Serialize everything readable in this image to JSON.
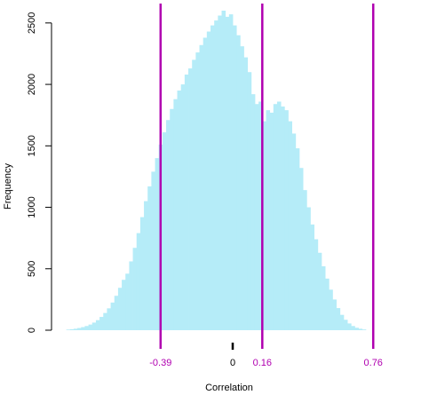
{
  "chart_data": {
    "type": "bar",
    "title": "",
    "xlabel": "Correlation",
    "ylabel": "Frequency",
    "ylim": [
      0,
      2600
    ],
    "y_ticks": [
      "0",
      "500",
      "1000",
      "1500",
      "2000",
      "2500"
    ],
    "x_tick_labels": [
      {
        "value": -0.39,
        "label": "-0.39",
        "color": "#b000b0"
      },
      {
        "value": 0,
        "label": "0",
        "color": "#000000"
      },
      {
        "value": 0.16,
        "label": "0.16",
        "color": "#b000b0"
      },
      {
        "value": 0.76,
        "label": "0.76",
        "color": "#b000b0"
      }
    ],
    "zero_marker": 0,
    "vertical_lines": [
      -0.39,
      0.16,
      0.76
    ],
    "bar_color": "#b5ecf8",
    "line_color": "#b000b0",
    "x_start": -0.9,
    "bin_width": 0.02,
    "values": [
      5,
      8,
      12,
      18,
      25,
      34,
      46,
      62,
      82,
      108,
      140,
      178,
      225,
      280,
      345,
      410,
      460,
      560,
      670,
      790,
      920,
      1050,
      1170,
      1290,
      1400,
      1510,
      1610,
      1710,
      1800,
      1880,
      1950,
      2000,
      2080,
      2130,
      2200,
      2260,
      2320,
      2380,
      2430,
      2480,
      2520,
      2560,
      2600,
      2550,
      2570,
      2480,
      2400,
      2310,
      2220,
      2100,
      1920,
      1840,
      1860,
      1700,
      1790,
      1770,
      1840,
      1860,
      1820,
      1790,
      1700,
      1600,
      1480,
      1320,
      1140,
      1000,
      860,
      740,
      630,
      520,
      420,
      330,
      250,
      180,
      125,
      85,
      55,
      34,
      20,
      12,
      6
    ]
  }
}
